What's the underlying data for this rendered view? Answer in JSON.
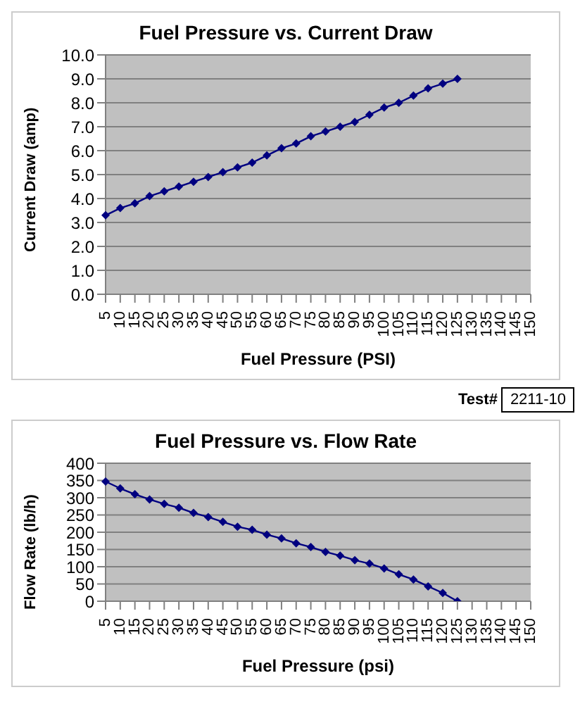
{
  "chart_data": [
    {
      "type": "line",
      "title": "Fuel Pressure vs. Current Draw",
      "xlabel": "Fuel Pressure (PSI)",
      "ylabel": "Current Draw (amp)",
      "categories": [
        "5",
        "10",
        "15",
        "20",
        "25",
        "30",
        "35",
        "40",
        "45",
        "50",
        "55",
        "60",
        "65",
        "70",
        "75",
        "80",
        "85",
        "90",
        "95",
        "100",
        "105",
        "110",
        "115",
        "120",
        "125",
        "130",
        "135",
        "140",
        "145",
        "150"
      ],
      "series": [
        {
          "color": "#000080",
          "values": [
            3.3,
            3.6,
            3.8,
            4.1,
            4.3,
            4.5,
            4.7,
            4.9,
            5.1,
            5.3,
            5.5,
            5.8,
            6.1,
            6.3,
            6.6,
            6.8,
            7.0,
            7.2,
            7.5,
            7.8,
            8.0,
            8.3,
            8.6,
            8.8,
            9.0,
            null,
            null,
            null,
            null,
            null
          ]
        }
      ],
      "ylim": [
        0,
        10
      ],
      "yticks": [
        {
          "value": 0,
          "label": "0.0"
        },
        {
          "value": 1,
          "label": "1.0"
        },
        {
          "value": 2,
          "label": "2.0"
        },
        {
          "value": 3,
          "label": "3.0"
        },
        {
          "value": 4,
          "label": "4.0"
        },
        {
          "value": 5,
          "label": "5.0"
        },
        {
          "value": 6,
          "label": "6.0"
        },
        {
          "value": 7,
          "label": "7.0"
        },
        {
          "value": 8,
          "label": "8.0"
        },
        {
          "value": 9,
          "label": "9.0"
        },
        {
          "value": 10,
          "label": "10.0"
        }
      ],
      "grid": "y",
      "marker": "diamond",
      "legend": false
    },
    {
      "type": "other",
      "annotations": [
        "Test#",
        "2211-10"
      ]
    },
    {
      "type": "line",
      "title": "Fuel Pressure vs. Flow Rate",
      "xlabel": "Fuel Pressure (psi)",
      "ylabel": "Flow Rate (lb/h)",
      "categories": [
        "5",
        "10",
        "15",
        "20",
        "25",
        "30",
        "35",
        "40",
        "45",
        "50",
        "55",
        "60",
        "65",
        "70",
        "75",
        "80",
        "85",
        "90",
        "95",
        "100",
        "105",
        "110",
        "115",
        "120",
        "125",
        "130",
        "135",
        "140",
        "145",
        "150"
      ],
      "series": [
        {
          "color": "#000080",
          "values": [
            347,
            327,
            310,
            295,
            282,
            271,
            256,
            244,
            230,
            216,
            207,
            193,
            182,
            168,
            157,
            143,
            132,
            119,
            109,
            95,
            78,
            63,
            43,
            24,
            0,
            null,
            null,
            null,
            null,
            null
          ]
        }
      ],
      "ylim": [
        0,
        400
      ],
      "yticks": [
        0,
        50,
        100,
        150,
        200,
        250,
        300,
        350,
        400
      ],
      "grid": "y",
      "marker": "diamond",
      "legend": false
    }
  ]
}
